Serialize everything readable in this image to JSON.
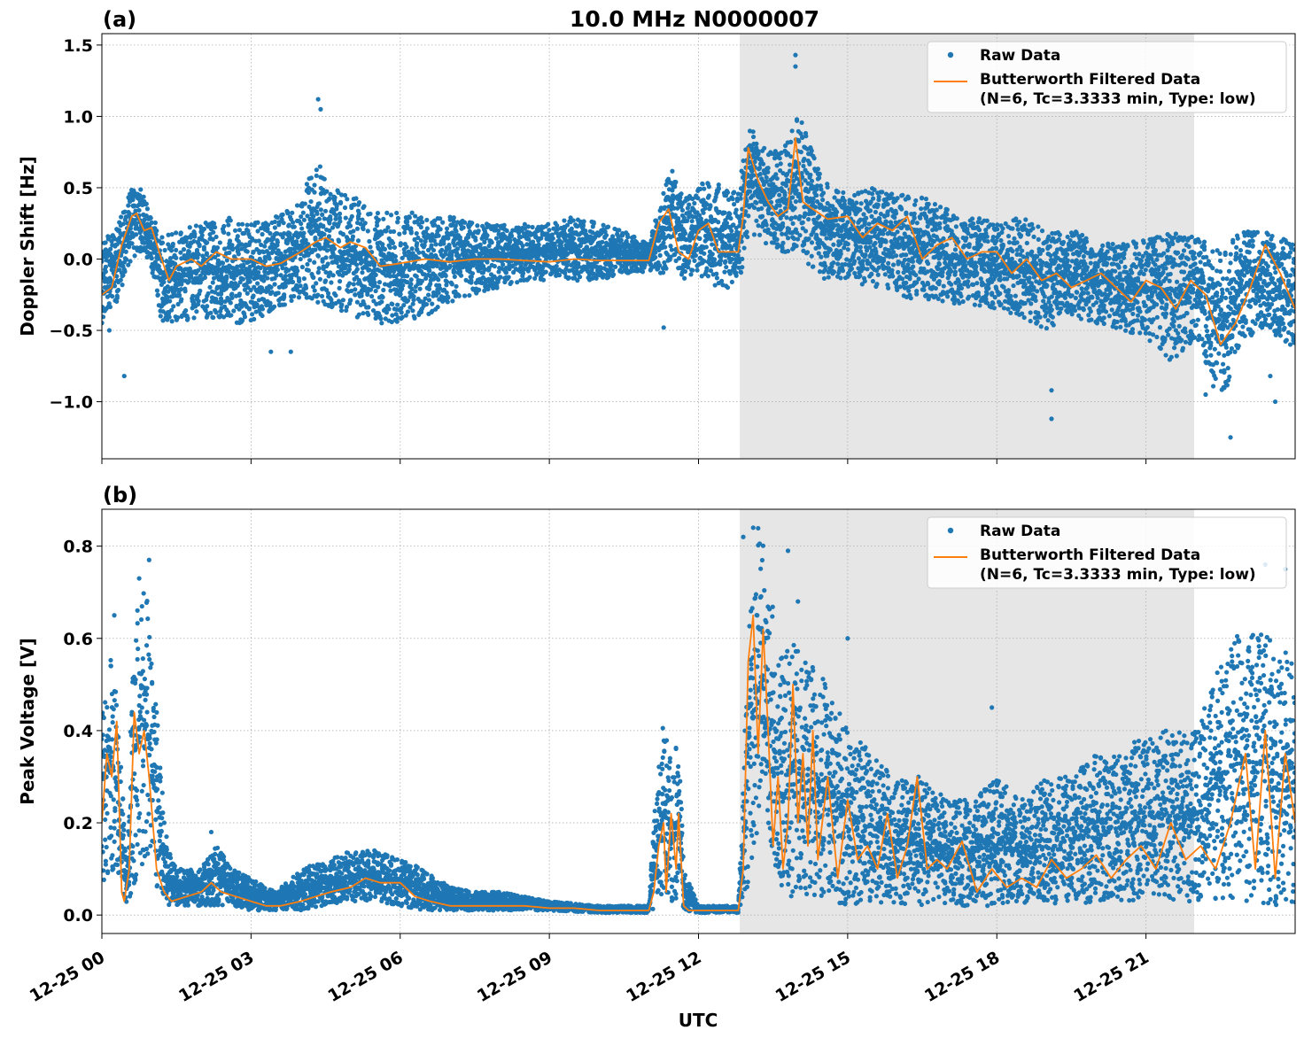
{
  "figure": {
    "title": "10.0 MHz N0000007",
    "xlabel": "UTC"
  },
  "colors": {
    "raw": "#1f77b4",
    "filtered": "#ff7f0e",
    "shade": "#e6e6e6",
    "grid": "#b0b0b0"
  },
  "chart_data": [
    {
      "type": "scatter",
      "panel_label": "(a)",
      "ylabel": "Doppler Shift [Hz]",
      "x_unit": "hours since 12-25 00:00 UTC",
      "xlim": [
        0,
        24
      ],
      "ylim": [
        -1.4,
        1.58
      ],
      "yticks": [
        -1.0,
        -0.5,
        0.0,
        0.5,
        1.0,
        1.5
      ],
      "ytick_labels": [
        "−1.0",
        "−0.5",
        "0.0",
        "0.5",
        "1.0",
        "1.5"
      ],
      "xticks": [
        0,
        3,
        6,
        9,
        12,
        15,
        18,
        21
      ],
      "shaded_region": [
        12.83,
        21.97
      ],
      "grid": true,
      "legend": {
        "position": "upper right",
        "entries": [
          {
            "label": "Raw Data",
            "marker": "dot"
          },
          {
            "label": "Butterworth Filtered Data",
            "label_line2": "(N=6, Tc=3.3333 min, Type: low)",
            "marker": "line"
          }
        ]
      },
      "series": [
        {
          "name": "Raw Data",
          "style": "band",
          "x": [
            0,
            0.3,
            0.6,
            0.8,
            1.0,
            1.2,
            1.5,
            2.0,
            2.5,
            3.0,
            3.5,
            4.0,
            4.3,
            4.6,
            5.0,
            5.5,
            6.0,
            6.5,
            7.0,
            7.5,
            8.0,
            8.5,
            9.0,
            9.5,
            10.0,
            10.5,
            11.0,
            11.3,
            11.5,
            11.7,
            12.0,
            12.3,
            12.6,
            12.8,
            13.0,
            13.3,
            13.7,
            14.0,
            14.5,
            15.0,
            15.5,
            16.0,
            16.5,
            17.0,
            17.5,
            18.0,
            18.5,
            19.0,
            19.5,
            20.0,
            20.5,
            21.0,
            21.5,
            22.0,
            22.5,
            23.0,
            23.5,
            24.0
          ],
          "y_high": [
            0.1,
            0.25,
            0.5,
            0.5,
            0.3,
            0.2,
            0.2,
            0.25,
            0.3,
            0.25,
            0.3,
            0.4,
            0.75,
            0.5,
            0.45,
            0.35,
            0.35,
            0.3,
            0.3,
            0.25,
            0.25,
            0.25,
            0.25,
            0.3,
            0.25,
            0.2,
            0.1,
            0.5,
            0.65,
            0.4,
            0.55,
            0.55,
            0.5,
            0.5,
            0.95,
            0.8,
            0.75,
            1.05,
            0.55,
            0.45,
            0.5,
            0.45,
            0.45,
            0.35,
            0.3,
            0.25,
            0.3,
            0.2,
            0.2,
            0.15,
            0.1,
            0.15,
            0.2,
            0.15,
            0.1,
            0.2,
            0.2,
            0.1
          ],
          "y_low": [
            -0.45,
            -0.3,
            0.0,
            0.05,
            -0.1,
            -0.45,
            -0.45,
            -0.4,
            -0.45,
            -0.45,
            -0.35,
            -0.3,
            -0.3,
            -0.35,
            -0.4,
            -0.45,
            -0.45,
            -0.4,
            -0.3,
            -0.25,
            -0.2,
            -0.15,
            -0.15,
            -0.15,
            -0.15,
            -0.1,
            -0.1,
            -0.1,
            0.0,
            -0.15,
            -0.1,
            -0.2,
            -0.2,
            -0.2,
            0.15,
            0.1,
            0.05,
            0.05,
            -0.15,
            -0.15,
            -0.2,
            -0.25,
            -0.3,
            -0.3,
            -0.35,
            -0.35,
            -0.4,
            -0.5,
            -0.4,
            -0.45,
            -0.5,
            -0.55,
            -0.75,
            -0.55,
            -1.05,
            -0.55,
            -0.5,
            -0.65
          ],
          "outliers": [
            [
              0.15,
              -0.5
            ],
            [
              0.45,
              -0.82
            ],
            [
              3.4,
              -0.65
            ],
            [
              3.8,
              -0.65
            ],
            [
              4.35,
              1.12
            ],
            [
              4.4,
              1.05
            ],
            [
              11.3,
              -0.48
            ],
            [
              13.95,
              1.43
            ],
            [
              13.95,
              1.35
            ],
            [
              19.1,
              -0.92
            ],
            [
              19.1,
              -1.12
            ],
            [
              22.2,
              -0.95
            ],
            [
              22.7,
              -1.25
            ],
            [
              23.5,
              -0.82
            ],
            [
              23.6,
              -1.0
            ]
          ]
        },
        {
          "name": "Butterworth Filtered Data",
          "style": "line",
          "x": [
            0,
            0.2,
            0.4,
            0.6,
            0.7,
            0.85,
            1.0,
            1.2,
            1.35,
            1.5,
            1.8,
            2.0,
            2.3,
            2.6,
            3.0,
            3.3,
            3.6,
            4.0,
            4.3,
            4.5,
            4.8,
            5.0,
            5.3,
            5.6,
            6.0,
            6.5,
            7.0,
            7.5,
            8.0,
            8.5,
            9.0,
            9.5,
            10.0,
            10.5,
            11.0,
            11.2,
            11.4,
            11.6,
            11.8,
            12.0,
            12.2,
            12.4,
            12.6,
            12.8,
            12.9,
            13.0,
            13.2,
            13.4,
            13.6,
            13.8,
            13.95,
            14.1,
            14.3,
            14.6,
            15.0,
            15.3,
            15.6,
            15.9,
            16.2,
            16.5,
            16.8,
            17.1,
            17.4,
            17.7,
            18.0,
            18.3,
            18.6,
            18.9,
            19.2,
            19.5,
            19.8,
            20.1,
            20.4,
            20.7,
            21.0,
            21.3,
            21.6,
            21.9,
            22.2,
            22.5,
            22.8,
            23.1,
            23.4,
            23.7,
            24.0
          ],
          "y": [
            -0.25,
            -0.2,
            0.1,
            0.3,
            0.32,
            0.2,
            0.22,
            0.0,
            -0.15,
            -0.05,
            0.0,
            -0.05,
            0.05,
            0.0,
            0.0,
            -0.05,
            -0.03,
            0.05,
            0.12,
            0.15,
            0.08,
            0.12,
            0.08,
            -0.05,
            -0.03,
            0.0,
            -0.02,
            0.0,
            0.0,
            -0.01,
            -0.02,
            0.0,
            -0.01,
            -0.01,
            -0.01,
            0.25,
            0.35,
            0.05,
            0.0,
            0.2,
            0.25,
            0.05,
            0.05,
            0.05,
            0.3,
            0.78,
            0.55,
            0.4,
            0.3,
            0.35,
            0.85,
            0.4,
            0.35,
            0.28,
            0.3,
            0.15,
            0.25,
            0.2,
            0.3,
            0.0,
            0.1,
            0.15,
            0.0,
            0.05,
            0.05,
            -0.1,
            0.0,
            -0.15,
            -0.1,
            -0.2,
            -0.15,
            -0.1,
            -0.2,
            -0.3,
            -0.15,
            -0.2,
            -0.35,
            -0.15,
            -0.25,
            -0.6,
            -0.45,
            -0.2,
            0.1,
            -0.1,
            -0.35
          ]
        }
      ]
    },
    {
      "type": "scatter",
      "panel_label": "(b)",
      "ylabel": "Peak Voltage [V]",
      "xlabel": "UTC",
      "x_unit": "hours since 12-25 00:00 UTC",
      "xlim": [
        0,
        24
      ],
      "ylim": [
        -0.04,
        0.88
      ],
      "yticks": [
        0.0,
        0.2,
        0.4,
        0.6,
        0.8
      ],
      "ytick_labels": [
        "0.0",
        "0.2",
        "0.4",
        "0.6",
        "0.8"
      ],
      "xticks": [
        0,
        3,
        6,
        9,
        12,
        15,
        18,
        21
      ],
      "xtick_labels": [
        "12-25 00",
        "12-25 03",
        "12-25 06",
        "12-25 09",
        "12-25 12",
        "12-25 15",
        "12-25 18",
        "12-25 21"
      ],
      "shaded_region": [
        12.83,
        21.97
      ],
      "grid": true,
      "legend": {
        "position": "upper right",
        "entries": [
          {
            "label": "Raw Data",
            "marker": "dot"
          },
          {
            "label": "Butterworth Filtered Data",
            "label_line2": "(N=6, Tc=3.3333 min, Type: low)",
            "marker": "line"
          }
        ]
      },
      "series": [
        {
          "name": "Raw Data",
          "style": "band",
          "x": [
            0,
            0.2,
            0.4,
            0.5,
            0.6,
            0.75,
            0.9,
            1.1,
            1.3,
            1.5,
            2.0,
            2.3,
            2.6,
            3.0,
            3.5,
            4.0,
            4.5,
            5.0,
            5.5,
            6.0,
            6.5,
            7.0,
            7.5,
            8.0,
            8.5,
            9.0,
            10.0,
            11.0,
            11.1,
            11.3,
            11.5,
            11.6,
            11.7,
            12.0,
            12.5,
            12.8,
            13.0,
            13.2,
            13.4,
            13.6,
            13.9,
            14.2,
            14.6,
            15.0,
            15.5,
            16.0,
            16.5,
            17.0,
            17.5,
            18.0,
            18.5,
            19.0,
            19.5,
            20.0,
            20.5,
            21.0,
            21.5,
            22.0,
            22.5,
            23.0,
            23.5,
            24.0
          ],
          "y_high": [
            0.45,
            0.6,
            0.3,
            0.1,
            0.5,
            0.72,
            0.7,
            0.45,
            0.15,
            0.1,
            0.1,
            0.16,
            0.1,
            0.08,
            0.05,
            0.1,
            0.12,
            0.14,
            0.14,
            0.12,
            0.1,
            0.06,
            0.05,
            0.05,
            0.04,
            0.03,
            0.02,
            0.02,
            0.2,
            0.45,
            0.3,
            0.45,
            0.1,
            0.02,
            0.02,
            0.02,
            0.6,
            0.85,
            0.8,
            0.55,
            0.6,
            0.55,
            0.5,
            0.4,
            0.35,
            0.3,
            0.3,
            0.25,
            0.25,
            0.3,
            0.25,
            0.3,
            0.3,
            0.35,
            0.35,
            0.4,
            0.4,
            0.4,
            0.55,
            0.65,
            0.6,
            0.55
          ],
          "y_low": [
            0.07,
            0.1,
            0.05,
            0.02,
            0.05,
            0.1,
            0.12,
            0.05,
            0.02,
            0.02,
            0.02,
            0.02,
            0.02,
            0.01,
            0.01,
            0.01,
            0.02,
            0.03,
            0.03,
            0.02,
            0.01,
            0.01,
            0.01,
            0.01,
            0.01,
            0.01,
            0.005,
            0.005,
            0.01,
            0.05,
            0.02,
            0.05,
            0.01,
            0.005,
            0.005,
            0.005,
            0.05,
            0.2,
            0.2,
            0.05,
            0.03,
            0.04,
            0.03,
            0.02,
            0.03,
            0.02,
            0.02,
            0.02,
            0.02,
            0.02,
            0.02,
            0.02,
            0.02,
            0.03,
            0.03,
            0.03,
            0.03,
            0.03,
            0.03,
            0.03,
            0.02,
            0.02
          ],
          "outliers": [
            [
              0.25,
              0.65
            ],
            [
              0.75,
              0.73
            ],
            [
              0.95,
              0.77
            ],
            [
              1.3,
              0.17
            ],
            [
              2.2,
              0.18
            ],
            [
              12.9,
              0.82
            ],
            [
              13.1,
              0.84
            ],
            [
              13.8,
              0.79
            ],
            [
              14.0,
              0.68
            ],
            [
              15.0,
              0.6
            ],
            [
              17.9,
              0.45
            ],
            [
              22.9,
              0.74
            ],
            [
              23.4,
              0.76
            ],
            [
              23.8,
              0.75
            ]
          ]
        },
        {
          "name": "Butterworth Filtered Data",
          "style": "line",
          "x": [
            0,
            0.1,
            0.2,
            0.3,
            0.4,
            0.45,
            0.55,
            0.65,
            0.75,
            0.85,
            0.95,
            1.1,
            1.25,
            1.4,
            1.7,
            2.0,
            2.2,
            2.4,
            2.7,
            3.0,
            3.3,
            3.6,
            4.0,
            4.3,
            4.6,
            5.0,
            5.3,
            5.6,
            6.0,
            6.3,
            6.6,
            7.0,
            7.5,
            8.0,
            8.5,
            9.0,
            9.5,
            10.0,
            10.5,
            11.0,
            11.1,
            11.2,
            11.3,
            11.35,
            11.45,
            11.55,
            11.6,
            11.7,
            11.8,
            12.0,
            12.5,
            12.8,
            12.9,
            13.0,
            13.1,
            13.2,
            13.3,
            13.4,
            13.5,
            13.6,
            13.7,
            13.8,
            13.9,
            14.0,
            14.1,
            14.2,
            14.3,
            14.4,
            14.6,
            14.8,
            15.0,
            15.2,
            15.4,
            15.6,
            15.8,
            16.0,
            16.2,
            16.4,
            16.6,
            16.8,
            17.0,
            17.3,
            17.6,
            17.9,
            18.2,
            18.5,
            18.8,
            19.1,
            19.4,
            19.7,
            20.0,
            20.3,
            20.6,
            20.9,
            21.2,
            21.5,
            21.8,
            22.1,
            22.4,
            22.7,
            23.0,
            23.2,
            23.4,
            23.6,
            23.8,
            24.0
          ],
          "y": [
            0.2,
            0.35,
            0.3,
            0.42,
            0.05,
            0.03,
            0.1,
            0.44,
            0.35,
            0.4,
            0.3,
            0.1,
            0.05,
            0.03,
            0.04,
            0.05,
            0.07,
            0.05,
            0.04,
            0.03,
            0.02,
            0.02,
            0.03,
            0.04,
            0.05,
            0.06,
            0.08,
            0.07,
            0.07,
            0.04,
            0.03,
            0.02,
            0.02,
            0.02,
            0.02,
            0.015,
            0.015,
            0.01,
            0.01,
            0.01,
            0.05,
            0.15,
            0.2,
            0.05,
            0.22,
            0.1,
            0.22,
            0.02,
            0.01,
            0.01,
            0.01,
            0.01,
            0.1,
            0.55,
            0.65,
            0.35,
            0.62,
            0.4,
            0.15,
            0.3,
            0.1,
            0.2,
            0.5,
            0.2,
            0.35,
            0.15,
            0.4,
            0.12,
            0.3,
            0.08,
            0.25,
            0.12,
            0.15,
            0.1,
            0.22,
            0.08,
            0.15,
            0.3,
            0.1,
            0.12,
            0.1,
            0.16,
            0.05,
            0.1,
            0.06,
            0.08,
            0.06,
            0.12,
            0.08,
            0.1,
            0.13,
            0.08,
            0.12,
            0.15,
            0.1,
            0.2,
            0.12,
            0.15,
            0.1,
            0.2,
            0.35,
            0.1,
            0.4,
            0.08,
            0.35,
            0.2
          ]
        }
      ]
    }
  ]
}
